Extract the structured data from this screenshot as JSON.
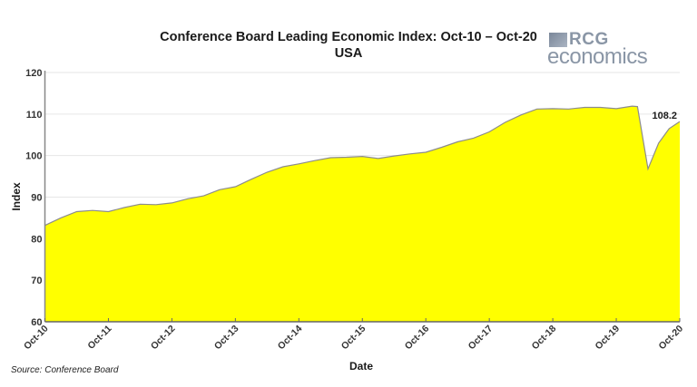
{
  "title": {
    "line1": "Conference Board Leading Economic Index: Oct-10 – Oct-20",
    "line2": "USA"
  },
  "logo": {
    "brand": "RCG",
    "sub": "economics"
  },
  "source": "Source: Conference Board",
  "colors": {
    "fill": "#ffff00",
    "line": "#8c8c8c",
    "grid": "#e6e6e6",
    "axis": "#888888",
    "text": "#1a1a1a"
  },
  "chart_data": {
    "type": "area",
    "title": "Conference Board Leading Economic Index: Oct-10 – Oct-20",
    "subtitle": "USA",
    "xlabel": "Date",
    "ylabel": "Index",
    "ylim": [
      60,
      120
    ],
    "yticks": [
      60,
      70,
      80,
      90,
      100,
      110,
      120
    ],
    "xticks": [
      "Oct-10",
      "Oct-11",
      "Oct-12",
      "Oct-13",
      "Oct-14",
      "Oct-15",
      "Oct-16",
      "Oct-17",
      "Oct-18",
      "Oct-19",
      "Oct-20"
    ],
    "grid": true,
    "legend": "none",
    "annotation": {
      "label": "108.2",
      "x": "Oct-20",
      "y": 108.2
    },
    "series": [
      {
        "name": "Leading Economic Index",
        "x": [
          "Oct-10",
          "Jan-11",
          "Apr-11",
          "Jul-11",
          "Oct-11",
          "Jan-12",
          "Apr-12",
          "Jul-12",
          "Oct-12",
          "Jan-13",
          "Apr-13",
          "Jul-13",
          "Oct-13",
          "Jan-14",
          "Apr-14",
          "Jul-14",
          "Oct-14",
          "Jan-15",
          "Apr-15",
          "Jul-15",
          "Oct-15",
          "Jan-16",
          "Apr-16",
          "Jul-16",
          "Oct-16",
          "Jan-17",
          "Apr-17",
          "Jul-17",
          "Oct-17",
          "Jan-18",
          "Apr-18",
          "Jul-18",
          "Oct-18",
          "Jan-19",
          "Apr-19",
          "Jul-19",
          "Oct-19",
          "Jan-20",
          "Feb-20",
          "Apr-20",
          "Jun-20",
          "Aug-20",
          "Oct-20"
        ],
        "months": [
          0,
          3,
          6,
          9,
          12,
          15,
          18,
          21,
          24,
          27,
          30,
          33,
          36,
          39,
          42,
          45,
          48,
          51,
          54,
          57,
          60,
          63,
          66,
          69,
          72,
          75,
          78,
          81,
          84,
          87,
          90,
          93,
          96,
          99,
          102,
          105,
          108,
          111,
          112,
          114,
          116,
          118,
          120
        ],
        "values": [
          83.2,
          85.0,
          86.5,
          86.8,
          86.5,
          87.5,
          88.3,
          88.2,
          88.6,
          89.6,
          90.3,
          91.8,
          92.5,
          94.3,
          96.0,
          97.3,
          98.0,
          98.8,
          99.5,
          99.6,
          99.8,
          99.3,
          99.9,
          100.4,
          100.8,
          102.0,
          103.3,
          104.2,
          105.7,
          108.0,
          109.8,
          111.2,
          111.3,
          111.2,
          111.6,
          111.6,
          111.3,
          111.9,
          111.8,
          96.8,
          103.0,
          106.5,
          108.2
        ]
      }
    ]
  }
}
